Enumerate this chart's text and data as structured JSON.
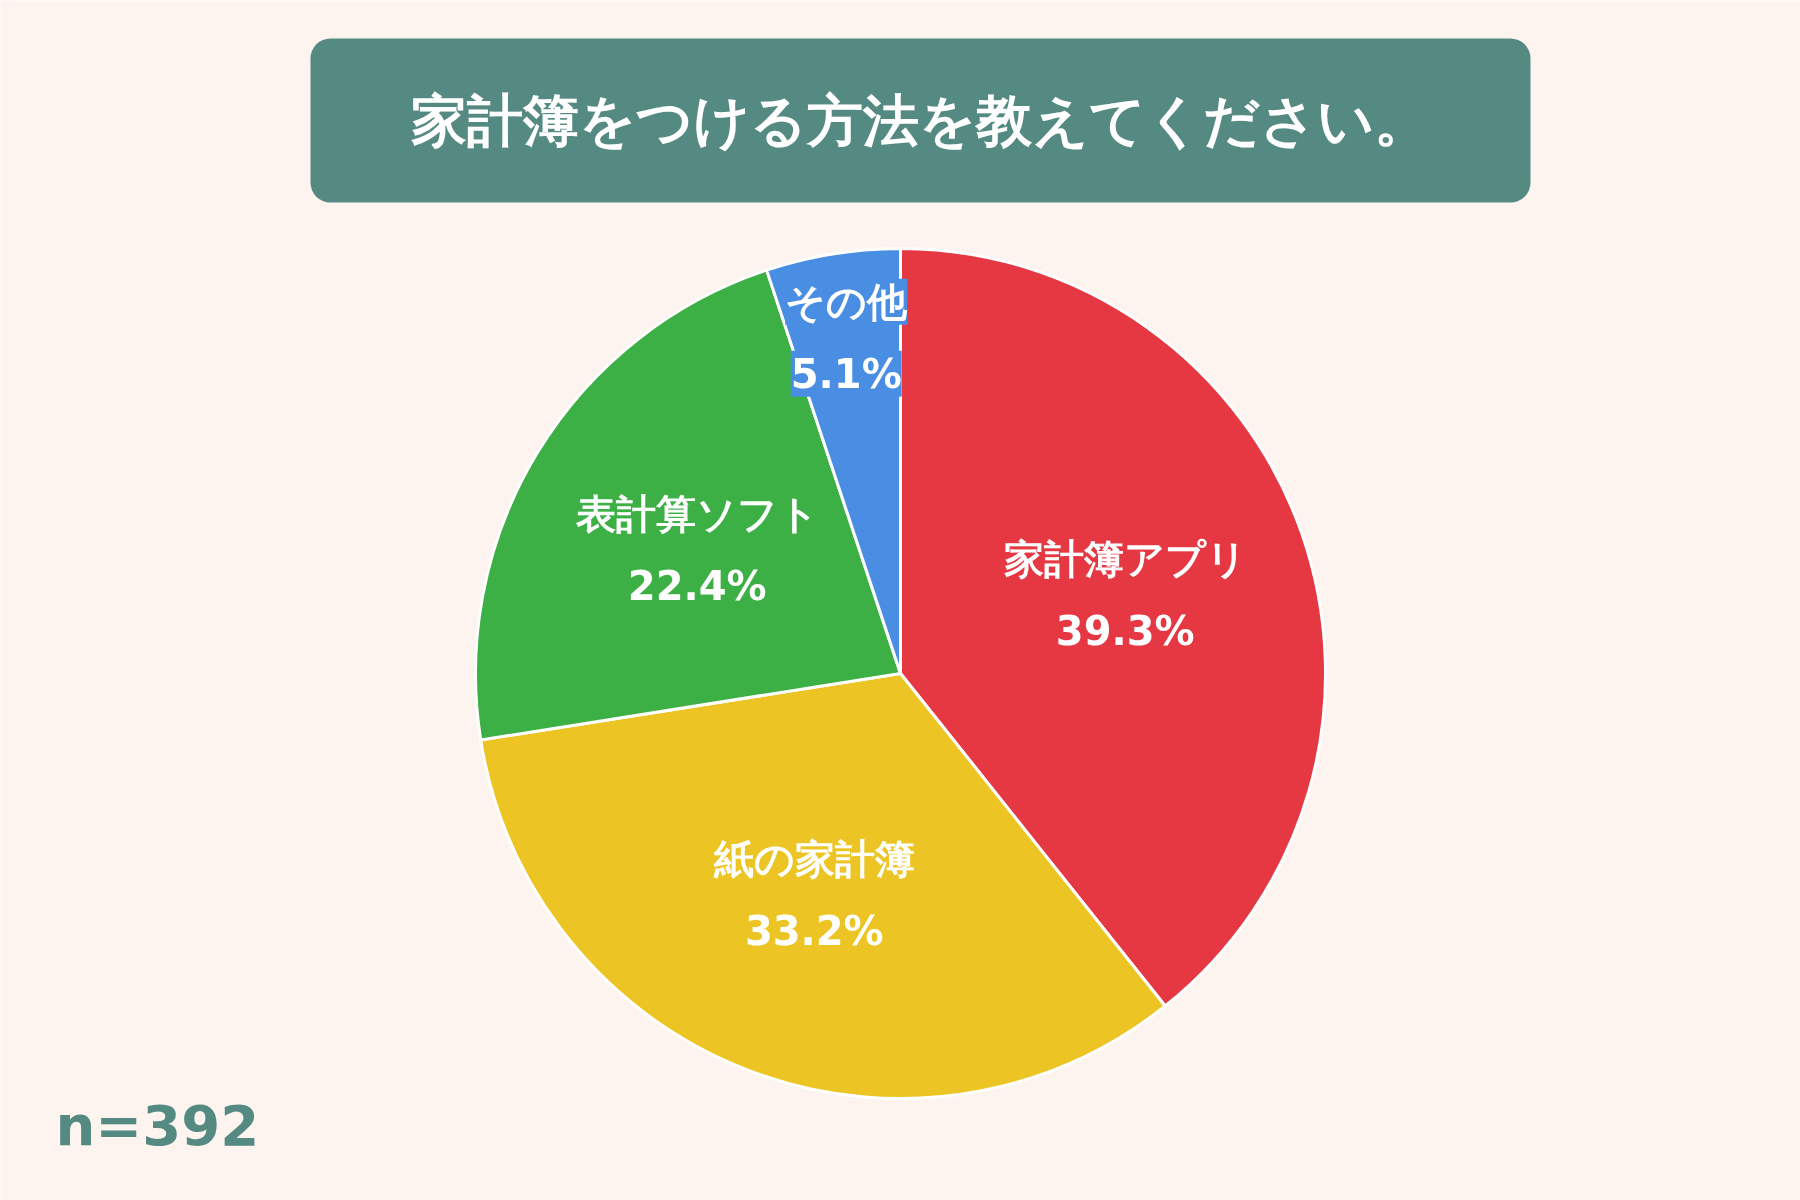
{
  "chart_data": {
    "type": "pie",
    "title": "家計簿をつける方法を教えてください。",
    "categories": [
      "家計簿アプリ",
      "紙の家計簿",
      "表計算ソフト",
      "その他"
    ],
    "values": [
      39.3,
      33.2,
      22.4,
      5.1
    ],
    "colors": [
      "#e63843",
      "#ecc524",
      "#3caf45",
      "#4a8ee3"
    ],
    "value_labels": [
      "39.3%",
      "33.2%",
      "22.4%",
      "5.1%"
    ],
    "annotations": [
      "n=392"
    ]
  }
}
